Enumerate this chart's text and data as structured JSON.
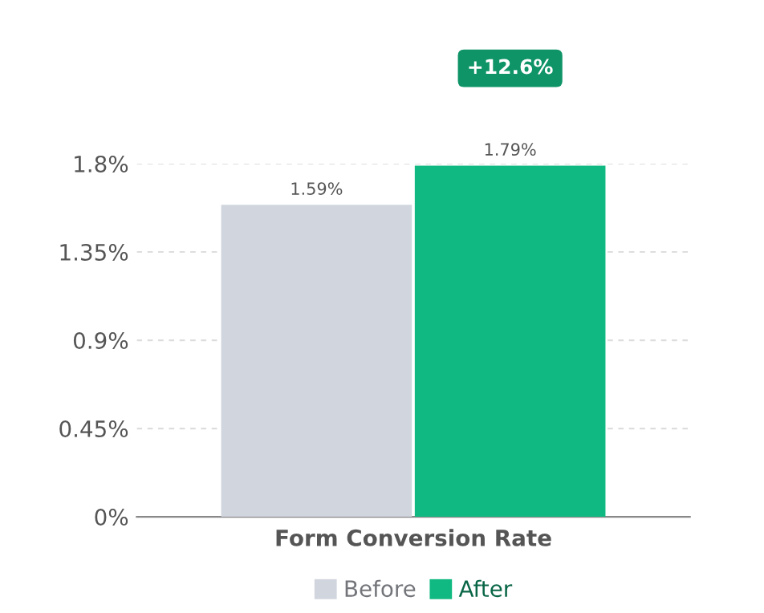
{
  "chart_data": {
    "type": "bar",
    "xlabel": "Form Conversion Rate",
    "categories": [
      null
    ],
    "series": [
      {
        "name": "Before",
        "color": "#d1d5de",
        "values": [
          1.59
        ],
        "value_labels": [
          "1.59%"
        ]
      },
      {
        "name": "After",
        "color": "#10b981",
        "values": [
          1.79
        ],
        "value_labels": [
          "1.79%"
        ]
      }
    ],
    "ylim": [
      0,
      1.8
    ],
    "yticks": [
      {
        "value": 0,
        "label": "0%"
      },
      {
        "value": 0.45,
        "label": "0.45%"
      },
      {
        "value": 0.9,
        "label": "0.9%"
      },
      {
        "value": 1.35,
        "label": "1.35%"
      },
      {
        "value": 1.8,
        "label": "1.8%"
      }
    ],
    "grid": "y",
    "legend": "bottom",
    "annotations": [
      "+12.6%"
    ]
  }
}
